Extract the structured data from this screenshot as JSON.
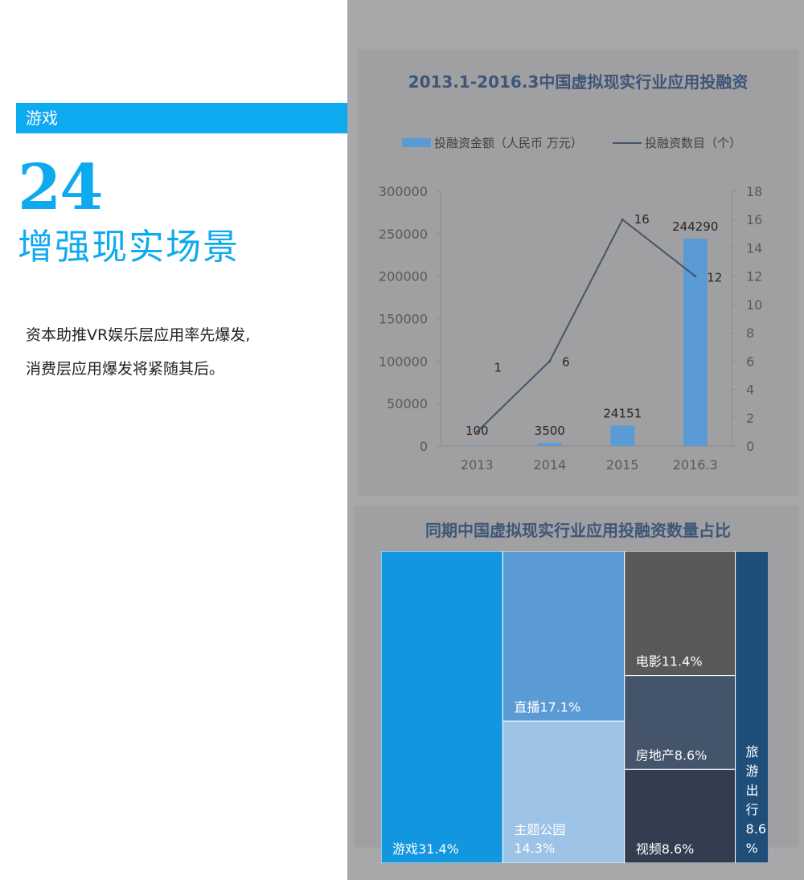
{
  "left": {
    "section_label": "游戏",
    "big_number": "24",
    "big_title": "增强现实场景",
    "desc_line1": "资本助推VR娱乐层应用率先爆发,",
    "desc_line2": "消费层应用爆发将紧随其后。"
  },
  "chart_data": [
    {
      "type": "bar",
      "title": "2013.1-2016.3中国虚拟现实行业应用投融资",
      "categories": [
        "2013",
        "2014",
        "2015",
        "2016.3"
      ],
      "series": [
        {
          "name": "投融资金额（人民币 万元）",
          "kind": "bar",
          "axis": "left",
          "values": [
            100,
            3500,
            24151,
            244290
          ],
          "color": "#5b9bd5"
        },
        {
          "name": "投融资数目（个）",
          "kind": "line",
          "axis": "right",
          "values": [
            1,
            6,
            16,
            12
          ],
          "color": "#44546a"
        }
      ],
      "y_left": {
        "lim": [
          0,
          300000
        ],
        "ticks": [
          0,
          50000,
          100000,
          150000,
          200000,
          250000,
          300000
        ]
      },
      "y_right": {
        "lim": [
          0,
          18
        ],
        "ticks": [
          0,
          2,
          4,
          6,
          8,
          10,
          12,
          14,
          16,
          18
        ]
      },
      "bar_labels": [
        "100",
        "3500",
        "24151",
        "244290"
      ],
      "line_labels": [
        "1",
        "6",
        "16",
        "12"
      ],
      "legend_position": "top"
    },
    {
      "type": "treemap",
      "title": "同期中国虚拟现实行业应用投融资数量占比",
      "items": [
        {
          "label": "游戏31.4%",
          "value": 31.4,
          "color": "#1296df"
        },
        {
          "label": "直播17.1%",
          "value": 17.1,
          "color": "#5b9bd5"
        },
        {
          "label": "主题公园",
          "label2": "14.3%",
          "value": 14.3,
          "color": "#9dc3e6"
        },
        {
          "label": "电影11.4%",
          "value": 11.4,
          "color": "#595959"
        },
        {
          "label": "房地产8.6%",
          "value": 8.6,
          "color": "#44546a"
        },
        {
          "label": "视频8.6%",
          "value": 8.6,
          "color": "#323d4f"
        },
        {
          "label": "旅游出行8.6%",
          "value": 8.6,
          "color": "#1f4e79"
        }
      ]
    }
  ]
}
